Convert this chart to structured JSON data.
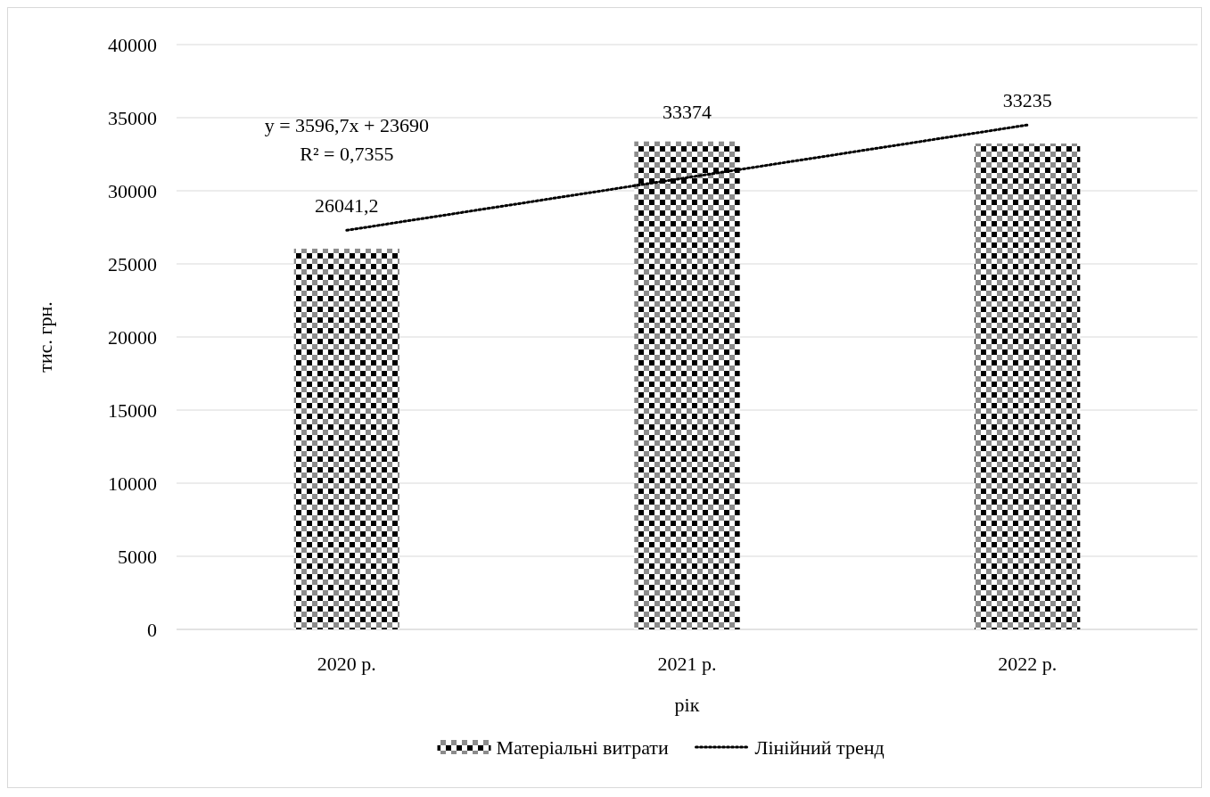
{
  "chart_data": {
    "type": "bar",
    "xlabel": "рік",
    "ylabel": "тис. грн.",
    "categories": [
      "2020 р.",
      "2021 р.",
      "2022 р."
    ],
    "ylim": [
      0,
      40000
    ],
    "yticks": [
      0,
      5000,
      10000,
      15000,
      20000,
      25000,
      30000,
      35000,
      40000
    ],
    "grid": "y",
    "legend": "bottom",
    "series": [
      {
        "name": "Матеріальні витрати",
        "color": "#000000",
        "values": [
          26041.2,
          33374,
          33235
        ],
        "value_labels": [
          "26041,2",
          "33374",
          "33235"
        ]
      },
      {
        "name": "Лінійний тренд",
        "type": "line",
        "color": "#000000",
        "line_style": "dotted",
        "values": [
          27300,
          30900,
          34500
        ]
      }
    ],
    "annotations": [
      "y = 3596,7x + 23690",
      "R² = 0,7355"
    ]
  }
}
